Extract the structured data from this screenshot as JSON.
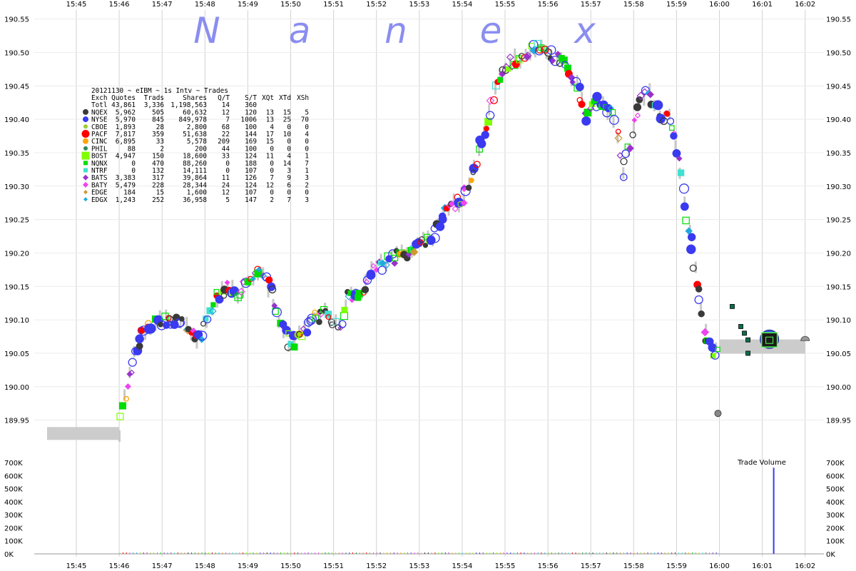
{
  "watermark": [
    "N",
    "a",
    "n",
    "e",
    "x"
  ],
  "chart_data": {
    "type": "scatter",
    "title": "20121130 ~ eIBM ~ 1s Intv ~ Trades",
    "x_ticks": [
      "15:45",
      "15:46",
      "15:47",
      "15:48",
      "15:49",
      "15:50",
      "15:51",
      "15:52",
      "15:53",
      "15:54",
      "15:55",
      "15:56",
      "15:57",
      "15:58",
      "15:59",
      "16:00",
      "16:01",
      "16:02"
    ],
    "y_ticks": [
      "190.55",
      "190.50",
      "190.45",
      "190.40",
      "190.35",
      "190.30",
      "190.25",
      "190.20",
      "190.15",
      "190.10",
      "190.05",
      "190.00",
      "189.95"
    ],
    "ylim": [
      189.925,
      190.555
    ],
    "volume_label": "Trade Volume",
    "volume_ticks": [
      "700K",
      "600K",
      "500K",
      "400K",
      "300K",
      "200K",
      "100K",
      "0K"
    ],
    "volume_ylim": [
      0,
      700000
    ],
    "price_path": [
      [
        "15:45:00",
        189.93
      ],
      [
        "15:46:00",
        189.93
      ],
      [
        "15:46:05",
        189.96
      ],
      [
        "15:46:10",
        190.0
      ],
      [
        "15:46:20",
        190.04
      ],
      [
        "15:46:30",
        190.07
      ],
      [
        "15:46:40",
        190.09
      ],
      [
        "15:46:55",
        190.1
      ],
      [
        "15:47:10",
        190.1
      ],
      [
        "15:47:25",
        190.1
      ],
      [
        "15:47:40",
        190.08
      ],
      [
        "15:47:50",
        190.07
      ],
      [
        "15:48:00",
        190.09
      ],
      [
        "15:48:15",
        190.13
      ],
      [
        "15:48:30",
        190.15
      ],
      [
        "15:48:45",
        190.14
      ],
      [
        "15:49:00",
        190.16
      ],
      [
        "15:49:15",
        190.17
      ],
      [
        "15:49:30",
        190.15
      ],
      [
        "15:49:45",
        190.1
      ],
      [
        "15:50:00",
        190.06
      ],
      [
        "15:50:15",
        190.08
      ],
      [
        "15:50:30",
        190.1
      ],
      [
        "15:50:45",
        190.11
      ],
      [
        "15:51:00",
        190.1
      ],
      [
        "15:51:10",
        190.09
      ],
      [
        "15:51:20",
        190.14
      ],
      [
        "15:51:35",
        190.13
      ],
      [
        "15:51:50",
        190.17
      ],
      [
        "15:52:05",
        190.18
      ],
      [
        "15:52:20",
        190.19
      ],
      [
        "15:52:40",
        190.2
      ],
      [
        "15:53:00",
        190.21
      ],
      [
        "15:53:15",
        190.22
      ],
      [
        "15:53:30",
        190.25
      ],
      [
        "15:53:45",
        190.27
      ],
      [
        "15:54:00",
        190.28
      ],
      [
        "15:54:15",
        190.32
      ],
      [
        "15:54:30",
        190.38
      ],
      [
        "15:54:45",
        190.44
      ],
      [
        "15:55:00",
        190.48
      ],
      [
        "15:55:15",
        190.49
      ],
      [
        "15:55:30",
        190.5
      ],
      [
        "15:55:45",
        190.51
      ],
      [
        "15:56:00",
        190.5
      ],
      [
        "15:56:15",
        190.49
      ],
      [
        "15:56:30",
        190.47
      ],
      [
        "15:56:45",
        190.44
      ],
      [
        "15:56:55",
        190.4
      ],
      [
        "15:57:05",
        190.43
      ],
      [
        "15:57:20",
        190.42
      ],
      [
        "15:57:35",
        190.4
      ],
      [
        "15:57:45",
        190.32
      ],
      [
        "15:57:55",
        190.36
      ],
      [
        "15:58:05",
        190.42
      ],
      [
        "15:58:20",
        190.44
      ],
      [
        "15:58:35",
        190.41
      ],
      [
        "15:58:50",
        190.4
      ],
      [
        "15:59:00",
        190.36
      ],
      [
        "15:59:10",
        190.28
      ],
      [
        "15:59:20",
        190.22
      ],
      [
        "15:59:30",
        190.14
      ],
      [
        "15:59:40",
        190.08
      ],
      [
        "15:59:50",
        190.05
      ],
      [
        "16:00:00",
        190.06
      ]
    ],
    "after_hours_path": [
      [
        "16:00:00",
        190.06
      ],
      [
        "16:02:00",
        190.06
      ]
    ],
    "after_hours_points": [
      {
        "x": "15:59:58",
        "y": 189.96,
        "exch": "NQEX"
      },
      {
        "x": "16:00:18",
        "y": 190.12,
        "exch": "NQNX"
      },
      {
        "x": "16:00:30",
        "y": 190.09,
        "exch": "NQNX"
      },
      {
        "x": "16:00:35",
        "y": 190.08,
        "exch": "NQNX"
      },
      {
        "x": "16:00:40",
        "y": 190.07,
        "exch": "NQNX"
      },
      {
        "x": "16:00:40",
        "y": 190.05,
        "exch": "NQNX"
      },
      {
        "x": "16:01:10",
        "y": 190.07,
        "exch": "BOST"
      },
      {
        "x": "16:02:00",
        "y": 190.07,
        "exch": "NQEX"
      }
    ],
    "volume_spike": {
      "x": "16:01:15",
      "value": 660000
    },
    "legend_columns": [
      "Exch",
      "Quotes",
      "Trads",
      "Shares",
      "Q/T",
      "S/T",
      "XQt",
      "XTd",
      "XSh"
    ],
    "legend_rows": [
      {
        "exch": "Totl",
        "quotes": "43,861",
        "trads": "3,336",
        "shares": "1,198,563",
        "qt": "14",
        "st": "360",
        "xqt": "",
        "xtd": "",
        "xsh": "",
        "color": "",
        "shape": "none"
      },
      {
        "exch": "NQEX",
        "quotes": "5,962",
        "trads": "505",
        "shares": "60,632",
        "qt": "12",
        "st": "120",
        "xqt": "13",
        "xtd": "15",
        "xsh": "5",
        "color": "#3a3a3a",
        "shape": "circle"
      },
      {
        "exch": "NYSE",
        "quotes": "5,970",
        "trads": "845",
        "shares": "849,978",
        "qt": "7",
        "st": "1006",
        "xqt": "13",
        "xtd": "25",
        "xsh": "70",
        "color": "#3a3af0",
        "shape": "circle"
      },
      {
        "exch": "CBOE",
        "quotes": "1,893",
        "trads": "28",
        "shares": "2,800",
        "qt": "68",
        "st": "100",
        "xqt": "4",
        "xtd": "0",
        "xsh": "0",
        "color": "#9acd32",
        "shape": "circle"
      },
      {
        "exch": "PACF",
        "quotes": "7,817",
        "trads": "359",
        "shares": "51,638",
        "qt": "22",
        "st": "144",
        "xqt": "17",
        "xtd": "10",
        "xsh": "4",
        "color": "#ff0000",
        "shape": "circle"
      },
      {
        "exch": "CINC",
        "quotes": "6,895",
        "trads": "33",
        "shares": "5,578",
        "qt": "209",
        "st": "169",
        "xqt": "15",
        "xtd": "0",
        "xsh": "0",
        "color": "#ffa500",
        "shape": "circle"
      },
      {
        "exch": "PHIL",
        "quotes": "88",
        "trads": "2",
        "shares": "200",
        "qt": "44",
        "st": "100",
        "xqt": "0",
        "xtd": "0",
        "xsh": "0",
        "color": "#2e8b57",
        "shape": "circle"
      },
      {
        "exch": "BOST",
        "quotes": "4,947",
        "trads": "150",
        "shares": "18,600",
        "qt": "33",
        "st": "124",
        "xqt": "11",
        "xtd": "4",
        "xsh": "1",
        "color": "#7fff00",
        "shape": "square"
      },
      {
        "exch": "NQNX",
        "quotes": "0",
        "trads": "470",
        "shares": "88,260",
        "qt": "0",
        "st": "188",
        "xqt": "0",
        "xtd": "14",
        "xsh": "7",
        "color": "#00dd00",
        "shape": "square"
      },
      {
        "exch": "NTRF",
        "quotes": "0",
        "trads": "132",
        "shares": "14,111",
        "qt": "0",
        "st": "107",
        "xqt": "0",
        "xtd": "3",
        "xsh": "1",
        "color": "#40e0d0",
        "shape": "square"
      },
      {
        "exch": "BATS",
        "quotes": "3,383",
        "trads": "317",
        "shares": "39,864",
        "qt": "11",
        "st": "126",
        "xqt": "7",
        "xtd": "9",
        "xsh": "3",
        "color": "#9932cc",
        "shape": "diamond"
      },
      {
        "exch": "BATY",
        "quotes": "5,479",
        "trads": "228",
        "shares": "28,344",
        "qt": "24",
        "st": "124",
        "xqt": "12",
        "xtd": "6",
        "xsh": "2",
        "color": "#ee44ee",
        "shape": "diamond"
      },
      {
        "exch": "EDGE",
        "quotes": "184",
        "trads": "15",
        "shares": "1,600",
        "qt": "12",
        "st": "107",
        "xqt": "0",
        "xtd": "0",
        "xsh": "0",
        "color": "#cc9933",
        "shape": "diamond"
      },
      {
        "exch": "EDGX",
        "quotes": "1,243",
        "trads": "252",
        "shares": "36,958",
        "qt": "5",
        "st": "147",
        "xqt": "2",
        "xtd": "7",
        "xsh": "3",
        "color": "#22aadd",
        "shape": "diamond"
      }
    ]
  }
}
